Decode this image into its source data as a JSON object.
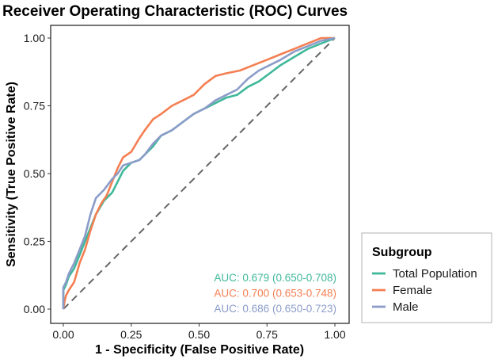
{
  "chart_data": {
    "type": "line",
    "title": "Receiver Operating Characteristic (ROC) Curves",
    "xlabel": "1 - Specificity (False Positive Rate)",
    "ylabel": "Sensitivity (True Positive Rate)",
    "xlim": [
      0,
      1
    ],
    "ylim": [
      0,
      1
    ],
    "x_ticks": [
      "0.00",
      "0.25",
      "0.50",
      "0.75",
      "1.00"
    ],
    "y_ticks": [
      "0.00",
      "0.25",
      "0.50",
      "0.75",
      "1.00"
    ],
    "grid": false,
    "reference_line": {
      "type": "diagonal",
      "style": "dashed",
      "color": "#666666"
    },
    "legend": {
      "title": "Subgroup",
      "placement": "right",
      "entries": [
        "Total Population",
        "Female",
        "Male"
      ]
    },
    "series": [
      {
        "name": "Total Population",
        "color": "#3fb89a",
        "auc_label": "AUC: 0.679 (0.650-0.708)",
        "x": [
          0,
          0,
          0.01,
          0.02,
          0.04,
          0.06,
          0.08,
          0.1,
          0.12,
          0.15,
          0.18,
          0.2,
          0.22,
          0.25,
          0.28,
          0.3,
          0.33,
          0.36,
          0.4,
          0.44,
          0.48,
          0.52,
          0.56,
          0.6,
          0.64,
          0.68,
          0.72,
          0.76,
          0.8,
          0.85,
          0.9,
          0.95,
          1.0
        ],
        "y": [
          0,
          0.07,
          0.09,
          0.12,
          0.15,
          0.2,
          0.25,
          0.3,
          0.35,
          0.4,
          0.43,
          0.47,
          0.51,
          0.54,
          0.55,
          0.57,
          0.6,
          0.64,
          0.66,
          0.69,
          0.72,
          0.74,
          0.76,
          0.78,
          0.79,
          0.82,
          0.84,
          0.87,
          0.9,
          0.93,
          0.96,
          0.98,
          1.0
        ]
      },
      {
        "name": "Female",
        "color": "#f47f52",
        "auc_label": "AUC: 0.700 (0.653-0.748)",
        "x": [
          0,
          0.005,
          0.01,
          0.02,
          0.04,
          0.06,
          0.08,
          0.1,
          0.12,
          0.14,
          0.16,
          0.18,
          0.2,
          0.22,
          0.25,
          0.28,
          0.3,
          0.33,
          0.36,
          0.4,
          0.44,
          0.48,
          0.52,
          0.56,
          0.6,
          0.65,
          0.7,
          0.75,
          0.8,
          0.85,
          0.9,
          0.95,
          1.0
        ],
        "y": [
          0,
          0.03,
          0.05,
          0.07,
          0.1,
          0.17,
          0.22,
          0.29,
          0.35,
          0.39,
          0.42,
          0.47,
          0.52,
          0.56,
          0.58,
          0.63,
          0.66,
          0.7,
          0.72,
          0.75,
          0.77,
          0.79,
          0.83,
          0.86,
          0.87,
          0.88,
          0.9,
          0.92,
          0.94,
          0.96,
          0.98,
          1.0,
          1.0
        ]
      },
      {
        "name": "Male",
        "color": "#8b9cc8",
        "auc_label": "AUC: 0.686 (0.650-0.723)",
        "x": [
          0,
          0,
          0.01,
          0.02,
          0.04,
          0.06,
          0.08,
          0.1,
          0.12,
          0.15,
          0.18,
          0.2,
          0.22,
          0.25,
          0.28,
          0.3,
          0.33,
          0.36,
          0.4,
          0.44,
          0.48,
          0.52,
          0.56,
          0.6,
          0.64,
          0.68,
          0.72,
          0.76,
          0.8,
          0.85,
          0.9,
          0.95,
          1.0
        ],
        "y": [
          0,
          0.08,
          0.1,
          0.13,
          0.17,
          0.22,
          0.27,
          0.35,
          0.41,
          0.44,
          0.48,
          0.5,
          0.53,
          0.54,
          0.55,
          0.57,
          0.61,
          0.64,
          0.66,
          0.69,
          0.72,
          0.74,
          0.77,
          0.79,
          0.81,
          0.85,
          0.88,
          0.9,
          0.92,
          0.95,
          0.97,
          0.99,
          1.0
        ]
      }
    ]
  }
}
